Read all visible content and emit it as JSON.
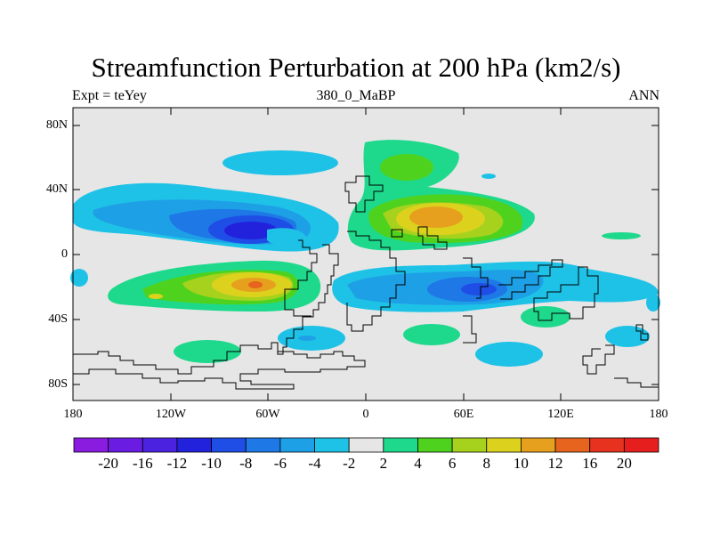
{
  "title": "Streamfunction Perturbation at 200 hPa (km2/s)",
  "subtitle_left": "Expt = teYey",
  "subtitle_center": "380_0_MaBP",
  "subtitle_right": "ANN",
  "lat_labels": [
    "80N",
    "40N",
    "0",
    "40S",
    "80S"
  ],
  "lon_labels": [
    "180",
    "120W",
    "60W",
    "0",
    "60E",
    "120E",
    "180"
  ],
  "colorbar": {
    "labels": [
      "-20",
      "-16",
      "-12",
      "-10",
      "-8",
      "-6",
      "-4",
      "-2",
      "2",
      "4",
      "6",
      "8",
      "10",
      "12",
      "16",
      "20"
    ],
    "colors": [
      "#8a1ce0",
      "#6a1ce2",
      "#4a22e0",
      "#2222dd",
      "#1e4ee6",
      "#1e78e6",
      "#1ea0e6",
      "#1ec2e6",
      "#e6e6e6",
      "#1ed98c",
      "#4ed21e",
      "#a6d21e",
      "#dcd21e",
      "#e6a01e",
      "#e6641e",
      "#e6321e",
      "#e61e1e"
    ]
  },
  "colors": {
    "background": "#e6e6e6",
    "coastline": "#000000"
  }
}
